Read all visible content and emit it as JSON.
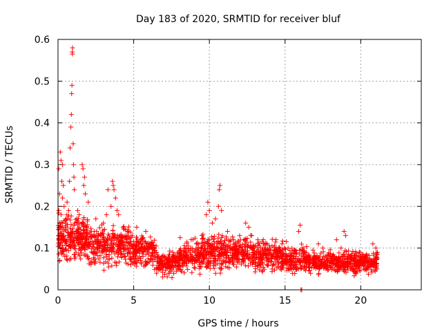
{
  "chart_data": {
    "type": "scatter",
    "title": "Day 183 of 2020, SRMTID for receiver bluf",
    "xlabel": "GPS time / hours",
    "ylabel": "SRMTID / TECUs",
    "xlim": [
      0,
      24
    ],
    "ylim": [
      0,
      0.6
    ],
    "xticks": [
      0,
      5,
      10,
      15,
      20
    ],
    "xtick_labels": [
      "0",
      "5",
      "10",
      "15",
      "20"
    ],
    "yticks": [
      0,
      0.1,
      0.2,
      0.3,
      0.4,
      0.5,
      0.6
    ],
    "ytick_labels": [
      "0",
      "0.1",
      "0.2",
      "0.3",
      "0.4",
      "0.5",
      "0.6"
    ],
    "grid": true,
    "marker": "+",
    "color": "#ff0000",
    "series": [
      {
        "name": "SRMTID",
        "points": [
          [
            0.05,
            0.29
          ],
          [
            0.1,
            0.23
          ],
          [
            0.15,
            0.33
          ],
          [
            0.2,
            0.31
          ],
          [
            0.25,
            0.26
          ],
          [
            0.3,
            0.3
          ],
          [
            0.35,
            0.25
          ],
          [
            0.05,
            0.19
          ],
          [
            0.1,
            0.15
          ],
          [
            0.2,
            0.18
          ],
          [
            0.3,
            0.22
          ],
          [
            0.4,
            0.2
          ],
          [
            0.5,
            0.17
          ],
          [
            0.6,
            0.21
          ],
          [
            0.7,
            0.19
          ],
          [
            0.75,
            0.26
          ],
          [
            0.8,
            0.34
          ],
          [
            0.85,
            0.39
          ],
          [
            0.88,
            0.42
          ],
          [
            0.9,
            0.47
          ],
          [
            0.92,
            0.49
          ],
          [
            0.94,
            0.57
          ],
          [
            0.96,
            0.58
          ],
          [
            0.95,
            0.565
          ],
          [
            1.0,
            0.35
          ],
          [
            1.02,
            0.3
          ],
          [
            1.05,
            0.27
          ],
          [
            1.08,
            0.24
          ],
          [
            0.15,
            0.1
          ],
          [
            0.25,
            0.12
          ],
          [
            0.45,
            0.08
          ],
          [
            0.55,
            0.11
          ],
          [
            0.65,
            0.13
          ],
          [
            0.85,
            0.1
          ],
          [
            1.1,
            0.16
          ],
          [
            1.2,
            0.14
          ],
          [
            1.3,
            0.19
          ],
          [
            1.4,
            0.18
          ],
          [
            1.6,
            0.3
          ],
          [
            1.65,
            0.29
          ],
          [
            1.7,
            0.25
          ],
          [
            1.75,
            0.27
          ],
          [
            1.8,
            0.23
          ],
          [
            1.5,
            0.12
          ],
          [
            1.9,
            0.15
          ],
          [
            2.0,
            0.21
          ],
          [
            2.2,
            0.14
          ],
          [
            2.5,
            0.17
          ],
          [
            2.8,
            0.13
          ],
          [
            3.0,
            0.16
          ],
          [
            3.2,
            0.18
          ],
          [
            3.3,
            0.24
          ],
          [
            3.5,
            0.2
          ],
          [
            3.6,
            0.26
          ],
          [
            3.65,
            0.25
          ],
          [
            3.7,
            0.24
          ],
          [
            3.8,
            0.22
          ],
          [
            3.9,
            0.19
          ],
          [
            4.0,
            0.18
          ],
          [
            4.3,
            0.15
          ],
          [
            4.6,
            0.14
          ],
          [
            4.9,
            0.13
          ],
          [
            5.2,
            0.15
          ],
          [
            5.5,
            0.12
          ],
          [
            5.8,
            0.14
          ],
          [
            6.1,
            0.1
          ],
          [
            6.4,
            0.08
          ],
          [
            6.8,
            0.07
          ],
          [
            7.2,
            0.06
          ],
          [
            7.6,
            0.08
          ],
          [
            8.0,
            0.09
          ],
          [
            8.4,
            0.1
          ],
          [
            8.8,
            0.12
          ],
          [
            9.2,
            0.11
          ],
          [
            9.5,
            0.13
          ],
          [
            9.8,
            0.18
          ],
          [
            9.9,
            0.21
          ],
          [
            10.0,
            0.19
          ],
          [
            10.2,
            0.16
          ],
          [
            10.4,
            0.17
          ],
          [
            10.6,
            0.2
          ],
          [
            10.65,
            0.24
          ],
          [
            10.7,
            0.25
          ],
          [
            10.8,
            0.19
          ],
          [
            11.2,
            0.14
          ],
          [
            11.6,
            0.12
          ],
          [
            12.0,
            0.13
          ],
          [
            12.4,
            0.16
          ],
          [
            12.6,
            0.15
          ],
          [
            12.8,
            0.13
          ],
          [
            13.2,
            0.12
          ],
          [
            13.6,
            0.11
          ],
          [
            14.0,
            0.1
          ],
          [
            14.4,
            0.12
          ],
          [
            14.8,
            0.11
          ],
          [
            15.2,
            0.1
          ],
          [
            15.6,
            0.09
          ],
          [
            15.9,
            0.14
          ],
          [
            16.0,
            0.155
          ],
          [
            16.05,
            0.0
          ],
          [
            16.1,
            0.0
          ],
          [
            16.3,
            0.09
          ],
          [
            16.6,
            0.08
          ],
          [
            16.9,
            0.07
          ],
          [
            17.2,
            0.11
          ],
          [
            17.5,
            0.1
          ],
          [
            17.8,
            0.07
          ],
          [
            18.1,
            0.08
          ],
          [
            18.4,
            0.12
          ],
          [
            18.7,
            0.1
          ],
          [
            18.9,
            0.14
          ],
          [
            19.0,
            0.13
          ],
          [
            19.3,
            0.08
          ],
          [
            19.6,
            0.07
          ],
          [
            19.9,
            0.09
          ],
          [
            20.2,
            0.06
          ],
          [
            20.5,
            0.07
          ],
          [
            20.8,
            0.11
          ],
          [
            21.0,
            0.1
          ],
          [
            21.1,
            0.09
          ]
        ]
      }
    ],
    "dense_band": {
      "description_values": "background scatter density, in data units",
      "segments": [
        {
          "x0": 0.0,
          "x1": 2.0,
          "ymin": 0.05,
          "ymax": 0.2,
          "count": 260
        },
        {
          "x0": 2.0,
          "x1": 5.0,
          "ymin": 0.04,
          "ymax": 0.17,
          "count": 300
        },
        {
          "x0": 5.0,
          "x1": 6.5,
          "ymin": 0.04,
          "ymax": 0.15,
          "count": 150
        },
        {
          "x0": 6.5,
          "x1": 8.0,
          "ymin": 0.025,
          "ymax": 0.1,
          "count": 150
        },
        {
          "x0": 8.0,
          "x1": 9.5,
          "ymin": 0.03,
          "ymax": 0.13,
          "count": 150
        },
        {
          "x0": 9.5,
          "x1": 11.0,
          "ymin": 0.03,
          "ymax": 0.15,
          "count": 170
        },
        {
          "x0": 11.0,
          "x1": 13.0,
          "ymin": 0.04,
          "ymax": 0.14,
          "count": 200
        },
        {
          "x0": 13.0,
          "x1": 15.0,
          "ymin": 0.03,
          "ymax": 0.13,
          "count": 200
        },
        {
          "x0": 15.0,
          "x1": 16.5,
          "ymin": 0.03,
          "ymax": 0.12,
          "count": 140
        },
        {
          "x0": 16.5,
          "x1": 18.5,
          "ymin": 0.03,
          "ymax": 0.1,
          "count": 200
        },
        {
          "x0": 18.5,
          "x1": 21.1,
          "ymin": 0.03,
          "ymax": 0.1,
          "count": 260
        }
      ]
    }
  }
}
